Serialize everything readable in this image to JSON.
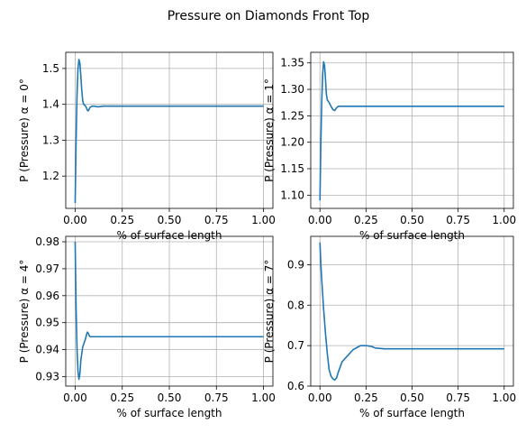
{
  "suptitle": "Pressure on Diamonds Front Top",
  "colors": {
    "series": "#1f77b4",
    "grid": "#b0b0b0"
  },
  "chart_data": [
    {
      "type": "line",
      "title": "",
      "xlabel": "% of surface length",
      "ylabel": "P (Pressure) α = 0°",
      "xlim": [
        -0.05,
        1.05
      ],
      "ylim": [
        1.11,
        1.545
      ],
      "xticks": [
        0.0,
        0.25,
        0.5,
        0.75,
        1.0
      ],
      "xtick_labels": [
        "0.00",
        "0.25",
        "0.50",
        "0.75",
        "1.00"
      ],
      "yticks": [
        1.2,
        1.3,
        1.4,
        1.5
      ],
      "ytick_labels": [
        "1.2",
        "1.3",
        "1.4",
        "1.5"
      ],
      "grid": true,
      "series": [
        {
          "x": [
            0.0,
            0.005,
            0.01,
            0.015,
            0.02,
            0.025,
            0.03,
            0.035,
            0.04,
            0.045,
            0.05,
            0.055,
            0.06,
            0.065,
            0.07,
            0.075,
            0.08,
            0.09,
            0.1,
            0.12,
            0.15,
            0.2,
            0.3,
            0.4,
            0.5,
            0.6,
            0.7,
            0.8,
            0.9,
            1.0
          ],
          "y": [
            1.125,
            1.3,
            1.43,
            1.5,
            1.525,
            1.515,
            1.48,
            1.44,
            1.41,
            1.4,
            1.398,
            1.395,
            1.39,
            1.383,
            1.382,
            1.388,
            1.392,
            1.395,
            1.395,
            1.393,
            1.395,
            1.395,
            1.395,
            1.395,
            1.395,
            1.395,
            1.395,
            1.395,
            1.395,
            1.395
          ]
        }
      ]
    },
    {
      "type": "line",
      "title": "",
      "xlabel": "% of surface length",
      "ylabel": "P (Pressure) α = 1°",
      "xlim": [
        -0.05,
        1.05
      ],
      "ylim": [
        1.075,
        1.37
      ],
      "xticks": [
        0.0,
        0.25,
        0.5,
        0.75,
        1.0
      ],
      "xtick_labels": [
        "0.00",
        "0.25",
        "0.50",
        "0.75",
        "1.00"
      ],
      "yticks": [
        1.1,
        1.15,
        1.2,
        1.25,
        1.3,
        1.35
      ],
      "ytick_labels": [
        "1.10",
        "1.15",
        "1.20",
        "1.25",
        "1.30",
        "1.35"
      ],
      "grid": true,
      "series": [
        {
          "x": [
            0.0,
            0.005,
            0.01,
            0.015,
            0.02,
            0.025,
            0.03,
            0.035,
            0.04,
            0.05,
            0.06,
            0.07,
            0.08,
            0.09,
            0.1,
            0.12,
            0.15,
            0.2,
            0.3,
            0.4,
            0.5,
            0.6,
            0.7,
            0.8,
            0.9,
            1.0
          ],
          "y": [
            1.09,
            1.2,
            1.28,
            1.33,
            1.352,
            1.345,
            1.32,
            1.29,
            1.28,
            1.275,
            1.268,
            1.262,
            1.26,
            1.265,
            1.268,
            1.268,
            1.268,
            1.268,
            1.268,
            1.268,
            1.268,
            1.268,
            1.268,
            1.268,
            1.268,
            1.268
          ]
        }
      ]
    },
    {
      "type": "line",
      "title": "",
      "xlabel": "% of surface length",
      "ylabel": "P (Pressure) α = 4°",
      "xlim": [
        -0.05,
        1.05
      ],
      "ylim": [
        0.9265,
        0.982
      ],
      "xticks": [
        0.0,
        0.25,
        0.5,
        0.75,
        1.0
      ],
      "xtick_labels": [
        "0.00",
        "0.25",
        "0.50",
        "0.75",
        "1.00"
      ],
      "yticks": [
        0.93,
        0.94,
        0.95,
        0.96,
        0.97,
        0.98
      ],
      "ytick_labels": [
        "0.93",
        "0.94",
        "0.95",
        "0.96",
        "0.97",
        "0.98"
      ],
      "grid": true,
      "series": [
        {
          "x": [
            0.0,
            0.005,
            0.01,
            0.015,
            0.02,
            0.025,
            0.03,
            0.04,
            0.05,
            0.055,
            0.06,
            0.065,
            0.07,
            0.075,
            0.08,
            0.09,
            0.1,
            0.12,
            0.15,
            0.2,
            0.3,
            0.4,
            0.5,
            0.6,
            0.7,
            0.8,
            0.9,
            1.0
          ],
          "y": [
            0.98,
            0.955,
            0.94,
            0.932,
            0.929,
            0.931,
            0.936,
            0.941,
            0.943,
            0.944,
            0.9455,
            0.9465,
            0.946,
            0.9452,
            0.9448,
            0.9448,
            0.9448,
            0.9448,
            0.9448,
            0.9448,
            0.9448,
            0.9448,
            0.9448,
            0.9448,
            0.9448,
            0.9448,
            0.9448,
            0.9448
          ]
        }
      ]
    },
    {
      "type": "line",
      "title": "",
      "xlabel": "% of surface length",
      "ylabel": "P (Pressure) α = 7°",
      "xlim": [
        -0.05,
        1.05
      ],
      "ylim": [
        0.6,
        0.97
      ],
      "xticks": [
        0.0,
        0.25,
        0.5,
        0.75,
        1.0
      ],
      "xtick_labels": [
        "0.00",
        "0.25",
        "0.50",
        "0.75",
        "1.00"
      ],
      "yticks": [
        0.6,
        0.7,
        0.8,
        0.9
      ],
      "ytick_labels": [
        "0.6",
        "0.7",
        "0.8",
        "0.9"
      ],
      "grid": true,
      "series": [
        {
          "x": [
            0.0,
            0.005,
            0.01,
            0.02,
            0.03,
            0.04,
            0.05,
            0.06,
            0.07,
            0.08,
            0.09,
            0.1,
            0.12,
            0.15,
            0.18,
            0.2,
            0.22,
            0.25,
            0.28,
            0.3,
            0.35,
            0.4,
            0.5,
            0.6,
            0.7,
            0.8,
            0.9,
            1.0
          ],
          "y": [
            0.955,
            0.9,
            0.86,
            0.79,
            0.73,
            0.68,
            0.64,
            0.625,
            0.618,
            0.615,
            0.62,
            0.635,
            0.66,
            0.675,
            0.69,
            0.695,
            0.7,
            0.7,
            0.698,
            0.694,
            0.692,
            0.692,
            0.692,
            0.692,
            0.692,
            0.692,
            0.692,
            0.692
          ]
        }
      ]
    }
  ]
}
